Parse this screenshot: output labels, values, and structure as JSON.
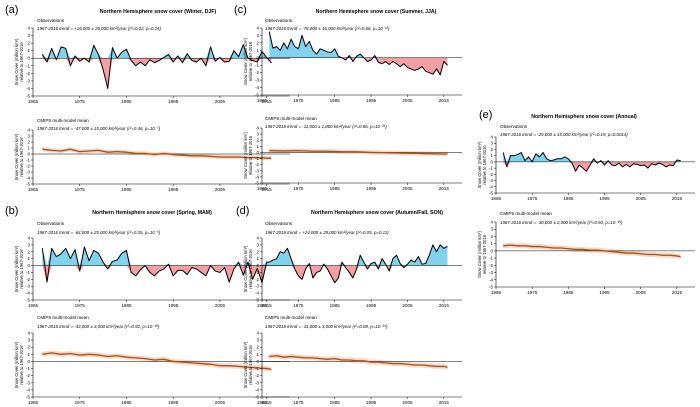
{
  "chart_data": [
    {
      "type": "area",
      "panel_id": "a",
      "panel_label": "(a)",
      "title": "Northern Hemisphere snow cover (Winter, DJF)",
      "ylabel_line1": "Snow Cover (million km²)",
      "ylabel_line2": "relative to 1967-2016",
      "xlim": [
        1965,
        2020
      ],
      "x_ticks": [
        "1965",
        "1975",
        "1985",
        "1995",
        "2005",
        "2015"
      ],
      "baseline": 0,
      "colors": {
        "positive_fill": "#7fd3ee",
        "negative_fill": "#f2a0a4",
        "obs_line": "#000000",
        "model_line": "#a0521b",
        "model_band": "#f7cdb5"
      },
      "observations": {
        "label": "Observations",
        "trend": "1967-2016 trend = +16,000 ± 26,000 km²/year (r²=0.02, p=0.24)",
        "ylim": [
          -5,
          4
        ],
        "y_ticks": [
          "4",
          "3",
          "2",
          "1",
          "0",
          "-1",
          "-2",
          "-3",
          "-4",
          "-5"
        ],
        "x": [
          1967,
          1968,
          1969,
          1970,
          1971,
          1972,
          1973,
          1974,
          1975,
          1976,
          1977,
          1978,
          1979,
          1980,
          1981,
          1982,
          1983,
          1984,
          1985,
          1986,
          1987,
          1988,
          1989,
          1990,
          1991,
          1992,
          1993,
          1994,
          1995,
          1996,
          1997,
          1998,
          1999,
          2000,
          2001,
          2002,
          2003,
          2004,
          2005,
          2006,
          2007,
          2008,
          2009,
          2010,
          2011,
          2012,
          2013,
          2014,
          2015,
          2016
        ],
        "y": [
          0.5,
          -0.5,
          1.3,
          -0.2,
          1.5,
          1.3,
          -1.0,
          0.3,
          -0.4,
          0.0,
          -0.5,
          1.7,
          0.5,
          -1.5,
          -4.0,
          1.4,
          0.0,
          0.8,
          1.2,
          -0.3,
          -1.0,
          -0.5,
          -1.0,
          -0.2,
          -0.6,
          -0.3,
          0.1,
          0.5,
          -0.5,
          0.3,
          -0.6,
          0.6,
          -0.3,
          -0.5,
          0.0,
          -1.0,
          1.5,
          -0.4,
          0.1,
          -0.5,
          -0.4,
          1.0,
          0.2,
          1.8,
          0.0,
          -0.3,
          -0.5,
          0.9,
          0.1,
          -0.6
        ]
      },
      "model": {
        "label": "CMIP5 multi-model mean",
        "trend": "1967-2016 trend = -47,000 ± 15,000 km²/year (r²=0.46, p=10⁻⁷)",
        "ylim": [
          -5,
          4
        ],
        "y_ticks": [
          "4",
          "3",
          "2",
          "1",
          "0",
          "-1",
          "-2",
          "-3",
          "-4",
          "-5"
        ],
        "x": [
          1967,
          1969,
          1971,
          1973,
          1975,
          1977,
          1979,
          1981,
          1983,
          1985,
          1987,
          1989,
          1991,
          1993,
          1995,
          1997,
          1999,
          2001,
          2003,
          2005,
          2007,
          2009,
          2011,
          2013,
          2015,
          2016
        ],
        "y": [
          0.8,
          0.6,
          0.5,
          0.8,
          0.4,
          0.5,
          0.6,
          0.3,
          0.4,
          0.3,
          0.1,
          0.1,
          -0.1,
          0.1,
          -0.1,
          -0.2,
          -0.3,
          -0.3,
          -0.4,
          -0.5,
          -0.5,
          -0.5,
          -0.6,
          -0.6,
          -0.7,
          -0.7
        ]
      }
    },
    {
      "type": "area",
      "panel_id": "b",
      "panel_label": "(b)",
      "title": "Northern Hemisphere snow cover (Spring, MAM)",
      "ylabel_line1": "Snow Cover (million km²)",
      "ylabel_line2": "relative to 1967-2016",
      "xlim": [
        1965,
        2020
      ],
      "x_ticks": [
        "1965",
        "1975",
        "1985",
        "1995",
        "2005",
        "2015"
      ],
      "baseline": 0,
      "colors": {
        "positive_fill": "#7fd3ee",
        "negative_fill": "#f2a0a4",
        "obs_line": "#000000",
        "model_line": "#a0521b",
        "model_band": "#f7cdb5"
      },
      "observations": {
        "label": "Observations",
        "trend": "1967-2016 trend = -64,000 ± 25,000 km²/year (r²=0.35, p=10⁻⁵)",
        "ylim": [
          -5,
          4
        ],
        "y_ticks": [
          "4",
          "3",
          "2",
          "1",
          "0",
          "-1",
          "-2",
          "-3",
          "-4",
          "-5"
        ],
        "x": [
          1967,
          1968,
          1969,
          1970,
          1971,
          1972,
          1973,
          1974,
          1975,
          1976,
          1977,
          1978,
          1979,
          1980,
          1981,
          1982,
          1983,
          1984,
          1985,
          1986,
          1987,
          1988,
          1989,
          1990,
          1991,
          1992,
          1993,
          1994,
          1995,
          1996,
          1997,
          1998,
          1999,
          2000,
          2001,
          2002,
          2003,
          2004,
          2005,
          2006,
          2007,
          2008,
          2009,
          2010,
          2011,
          2012,
          2013,
          2014,
          2015,
          2016
        ],
        "y": [
          2.5,
          -2.4,
          2.5,
          1.3,
          1.7,
          2.5,
          1.0,
          2.3,
          -0.8,
          2.7,
          0.7,
          2.2,
          1.8,
          0.5,
          -0.5,
          0.6,
          0.8,
          1.8,
          2.2,
          -1.0,
          -1.5,
          -0.6,
          0.0,
          -1.0,
          -1.5,
          -0.8,
          -0.5,
          0.2,
          -1.5,
          -0.7,
          -0.7,
          -1.3,
          -0.3,
          -0.5,
          -1.0,
          -1.5,
          0.0,
          -0.8,
          -1.0,
          -0.3,
          -2.4,
          -0.5,
          0.5,
          -1.4,
          0.5,
          -2.0,
          -0.4,
          -2.5,
          0.5,
          0.5
        ]
      },
      "model": {
        "label": "CMIP5 multi-model mean",
        "trend": "1967-2016 trend = -43,000 ± 3,000 km²/year (r²=0.92, p=10⁻²⁸)",
        "ylim": [
          -5,
          4
        ],
        "y_ticks": [
          "4",
          "3",
          "2",
          "1",
          "0",
          "-1",
          "-2",
          "-3",
          "-4",
          "-5"
        ],
        "x": [
          1967,
          1969,
          1971,
          1973,
          1975,
          1977,
          1979,
          1981,
          1983,
          1985,
          1987,
          1989,
          1991,
          1993,
          1995,
          1997,
          1999,
          2001,
          2003,
          2005,
          2007,
          2009,
          2011,
          2013,
          2015,
          2016
        ],
        "y": [
          1.0,
          1.2,
          1.0,
          1.1,
          0.9,
          1.0,
          0.9,
          0.7,
          0.8,
          0.6,
          0.5,
          0.4,
          0.2,
          0.3,
          0.0,
          -0.1,
          -0.2,
          -0.3,
          -0.4,
          -0.6,
          -0.6,
          -0.7,
          -0.8,
          -0.9,
          -1.0,
          -1.1
        ]
      }
    },
    {
      "type": "area",
      "panel_id": "c",
      "panel_label": "(c)",
      "title": "Northern Hemisphere snow cover (Summer, JJA)",
      "ylabel_line1": "Snow Cover (million km²)",
      "ylabel_line2": "relative to 1967-2016",
      "xlim": [
        1965,
        2020
      ],
      "x_ticks": [
        "1965",
        "1975",
        "1985",
        "1995",
        "2005",
        "2015"
      ],
      "baseline": 0,
      "colors": {
        "positive_fill": "#7fd3ee",
        "negative_fill": "#f2a0a4",
        "obs_line": "#000000",
        "model_line": "#a0521b",
        "model_band": "#f7cdb5"
      },
      "observations": {
        "label": "Observations",
        "trend": "1967-2016 trend = -78,000 ± 16,000 km²/year (r²=0.66, p=10⁻¹²)",
        "ylim": [
          -5,
          4
        ],
        "y_ticks": [
          "4",
          "3",
          "2",
          "1",
          "0",
          "-1",
          "-2",
          "-3",
          "-4",
          "-5"
        ],
        "x": [
          1967,
          1968,
          1969,
          1970,
          1971,
          1972,
          1973,
          1974,
          1975,
          1976,
          1977,
          1978,
          1979,
          1980,
          1981,
          1982,
          1983,
          1984,
          1985,
          1986,
          1987,
          1988,
          1989,
          1990,
          1991,
          1992,
          1993,
          1994,
          1995,
          1996,
          1997,
          1998,
          1999,
          2000,
          2001,
          2002,
          2003,
          2004,
          2005,
          2006,
          2007,
          2008,
          2009,
          2010,
          2011,
          2012,
          2013,
          2014,
          2015,
          2016
        ],
        "y": [
          3.5,
          1.3,
          1.5,
          1.0,
          2.0,
          1.2,
          2.5,
          1.5,
          1.2,
          3.0,
          1.5,
          2.2,
          1.0,
          0.5,
          1.2,
          1.0,
          0.8,
          0.7,
          1.2,
          0.2,
          0.0,
          -0.3,
          0.3,
          -0.5,
          0.2,
          0.5,
          0.0,
          -0.5,
          -0.3,
          0.3,
          -0.6,
          -0.8,
          -0.5,
          -0.9,
          -0.5,
          -0.8,
          -1.2,
          -0.8,
          -1.3,
          -1.5,
          -1.7,
          -1.5,
          -1.2,
          -1.8,
          -2.0,
          -2.2,
          -1.5,
          -2.3,
          -0.5,
          -1.0
        ]
      },
      "model": {
        "label": "CMIP5 multi-model mean",
        "trend": "1967-2016 trend = -11,000 ± 1,000 km²/year (r²=0.86, p=10⁻²¹)",
        "ylim": [
          -5,
          4
        ],
        "y_ticks": [
          "4",
          "3",
          "2",
          "1",
          "0",
          "-1",
          "-2",
          "-3",
          "-4",
          "-5"
        ],
        "x": [
          1967,
          1971,
          1975,
          1979,
          1983,
          1987,
          1991,
          1995,
          1999,
          2003,
          2007,
          2011,
          2015,
          2016
        ],
        "y": [
          0.3,
          0.25,
          0.3,
          0.2,
          0.2,
          0.1,
          0.1,
          0.0,
          -0.05,
          -0.1,
          -0.15,
          -0.2,
          -0.25,
          -0.25
        ]
      }
    },
    {
      "type": "area",
      "panel_id": "d",
      "panel_label": "(d)",
      "title": "Northern Hemisphere snow cover (Autumn/Fall, SON)",
      "ylabel_line1": "Snow Cover (million km²)",
      "ylabel_line2": "relative to 1967-2016",
      "xlim": [
        1965,
        2020
      ],
      "x_ticks": [
        "1965",
        "1975",
        "1985",
        "1995",
        "2005",
        "2015"
      ],
      "baseline": 0,
      "colors": {
        "positive_fill": "#7fd3ee",
        "negative_fill": "#f2a0a4",
        "obs_line": "#000000",
        "model_line": "#a0521b",
        "model_band": "#f7cdb5"
      },
      "observations": {
        "label": "Observations",
        "trend": "1967-2016 trend = +24,000 ± 29,000 km²/year (r²=0.05, p=0.11)",
        "ylim": [
          -5,
          4
        ],
        "y_ticks": [
          "4",
          "3",
          "2",
          "1",
          "0",
          "-1",
          "-2",
          "-3",
          "-4",
          "-5"
        ],
        "x": [
          1967,
          1968,
          1969,
          1970,
          1971,
          1972,
          1973,
          1974,
          1975,
          1976,
          1977,
          1978,
          1979,
          1980,
          1981,
          1982,
          1983,
          1984,
          1985,
          1986,
          1987,
          1988,
          1989,
          1990,
          1991,
          1992,
          1993,
          1994,
          1995,
          1996,
          1997,
          1998,
          1999,
          2000,
          2001,
          2002,
          2003,
          2004,
          2005,
          2006,
          2007,
          2008,
          2009,
          2010,
          2011,
          2012,
          2013,
          2014,
          2015,
          2016
        ],
        "y": [
          0.5,
          0.8,
          1.0,
          2.0,
          1.8,
          2.5,
          1.0,
          -0.5,
          -1.5,
          -2.0,
          -0.5,
          0.3,
          -1.8,
          -1.0,
          -0.8,
          0.2,
          -0.5,
          -1.5,
          -2.5,
          -1.8,
          0.5,
          -0.3,
          -1.0,
          -1.8,
          -0.5,
          1.5,
          0.5,
          -0.5,
          0.3,
          0.5,
          -0.5,
          1.0,
          0.2,
          -0.8,
          1.0,
          1.5,
          0.3,
          -0.3,
          0.2,
          0.8,
          0.5,
          1.3,
          0.2,
          0.3,
          1.5,
          3.0,
          2.0,
          3.0,
          2.5,
          2.8
        ]
      },
      "model": {
        "label": "CMIP5 multi-model mean",
        "trend": "1967-2016 trend = -31,000 ± 3,000 km²/year (r²=0.89, p=10⁻²⁴)",
        "ylim": [
          -5,
          4
        ],
        "y_ticks": [
          "4",
          "3",
          "2",
          "1",
          "0",
          "-1",
          "-2",
          "-3",
          "-4",
          "-5"
        ],
        "x": [
          1967,
          1969,
          1971,
          1973,
          1975,
          1977,
          1979,
          1981,
          1983,
          1985,
          1987,
          1989,
          1991,
          1993,
          1995,
          1997,
          1999,
          2001,
          2003,
          2005,
          2007,
          2009,
          2011,
          2013,
          2015,
          2016
        ],
        "y": [
          0.7,
          0.8,
          0.6,
          0.7,
          0.6,
          0.5,
          0.5,
          0.4,
          0.3,
          0.4,
          0.2,
          0.2,
          0.1,
          0.1,
          -0.1,
          -0.1,
          -0.2,
          -0.3,
          -0.3,
          -0.4,
          -0.5,
          -0.5,
          -0.6,
          -0.7,
          -0.7,
          -0.8
        ]
      }
    },
    {
      "type": "area",
      "panel_id": "e",
      "panel_label": "(e)",
      "title": "Northern Hemisphere snow cover (Annual)",
      "ylabel_line1": "Snow Cover (million km²)",
      "ylabel_line2": "relative to 1967-2016",
      "xlim": [
        1965,
        2020
      ],
      "x_ticks": [
        "1965",
        "1975",
        "1985",
        "1995",
        "2005",
        "2015"
      ],
      "baseline": 0,
      "colors": {
        "positive_fill": "#7fd3ee",
        "negative_fill": "#f2a0a4",
        "obs_line": "#000000",
        "model_line": "#a0521b",
        "model_band": "#f7cdb5"
      },
      "observations": {
        "label": "Observations",
        "trend": "1967-2016 trend = -25,000 ± 15,000 km²/year (r²=0.19, p=0.0014)",
        "ylim": [
          -5,
          4
        ],
        "y_ticks": [
          "4",
          "3",
          "2",
          "1",
          "0",
          "-1",
          "-2",
          "-3",
          "-4",
          "-5"
        ],
        "x": [
          1967,
          1968,
          1969,
          1970,
          1971,
          1972,
          1973,
          1974,
          1975,
          1976,
          1977,
          1978,
          1979,
          1980,
          1981,
          1982,
          1983,
          1984,
          1985,
          1986,
          1987,
          1988,
          1989,
          1990,
          1991,
          1992,
          1993,
          1994,
          1995,
          1996,
          1997,
          1998,
          1999,
          2000,
          2001,
          2002,
          2003,
          2004,
          2005,
          2006,
          2007,
          2008,
          2009,
          2010,
          2011,
          2012,
          2013,
          2014,
          2015,
          2016
        ],
        "y": [
          1.5,
          -0.8,
          1.0,
          1.0,
          1.2,
          1.5,
          0.2,
          0.8,
          0.0,
          1.3,
          0.8,
          1.5,
          0.5,
          0.2,
          0.3,
          0.5,
          0.5,
          0.8,
          0.5,
          -0.2,
          -1.5,
          -0.5,
          -1.0,
          -1.5,
          -0.5,
          0.5,
          -0.2,
          0.2,
          -0.5,
          0.2,
          -0.5,
          -0.6,
          -0.2,
          -0.8,
          -0.4,
          -0.8,
          -0.3,
          -0.4,
          -0.6,
          -0.5,
          -1.0,
          -0.3,
          -0.5,
          -0.2,
          -0.4,
          -0.8,
          -0.5,
          -0.6,
          0.3,
          0.2
        ]
      },
      "model": {
        "label": "CMIP5 multi-model mean",
        "trend": "1967-2016 trend = -30,000 ± 2,000 km²/year (r²=0.93, p=10⁻²⁹)",
        "ylim": [
          -5,
          4
        ],
        "y_ticks": [
          "4",
          "3",
          "2",
          "1",
          "0",
          "-1",
          "-2",
          "-3",
          "-4",
          "-5"
        ],
        "x": [
          1967,
          1969,
          1971,
          1973,
          1975,
          1977,
          1979,
          1981,
          1983,
          1985,
          1987,
          1989,
          1991,
          1993,
          1995,
          1997,
          1999,
          2001,
          2003,
          2005,
          2007,
          2009,
          2011,
          2013,
          2015,
          2016
        ],
        "y": [
          0.7,
          0.8,
          0.7,
          0.7,
          0.6,
          0.6,
          0.5,
          0.4,
          0.4,
          0.3,
          0.2,
          0.2,
          0.1,
          0.1,
          0.0,
          -0.1,
          -0.2,
          -0.3,
          -0.3,
          -0.4,
          -0.5,
          -0.5,
          -0.6,
          -0.6,
          -0.7,
          -0.8
        ]
      }
    }
  ]
}
